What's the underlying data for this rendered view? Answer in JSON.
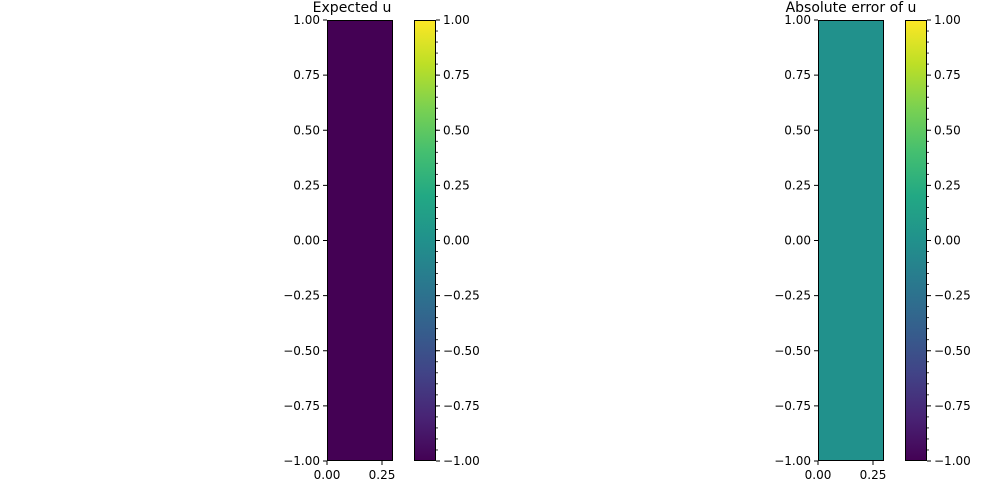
{
  "chart_data": [
    {
      "type": "heatmap",
      "title": "Expected u",
      "xlabel": "",
      "ylabel": "",
      "xlim": [
        0,
        0.3
      ],
      "ylim": [
        -1,
        1
      ],
      "x_ticks": [
        0,
        0.25
      ],
      "x_tick_labels": [
        "0.00",
        "0.25"
      ],
      "y_ticks": [
        -1,
        -0.75,
        -0.5,
        -0.25,
        0,
        0.25,
        0.5,
        0.75,
        1
      ],
      "y_tick_labels": [
        "−1.00",
        "−0.75",
        "−0.50",
        "−0.25",
        "0.00",
        "0.25",
        "0.50",
        "0.75",
        "1.00"
      ],
      "value": -1,
      "fill_color": "#440154",
      "colormap": "viridis",
      "colorbar": {
        "vmin": -1,
        "vmax": 1,
        "ticks": [
          -1,
          -0.75,
          -0.5,
          -0.25,
          0,
          0.25,
          0.5,
          0.75,
          1
        ],
        "tick_labels": [
          "−1.00",
          "−0.75",
          "−0.50",
          "−0.25",
          "0.00",
          "0.25",
          "0.50",
          "0.75",
          "1.00"
        ]
      }
    },
    {
      "type": "heatmap",
      "title": "Absolute error of u",
      "xlabel": "",
      "ylabel": "",
      "xlim": [
        0,
        0.3
      ],
      "ylim": [
        -1,
        1
      ],
      "x_ticks": [
        0,
        0.25
      ],
      "x_tick_labels": [
        "0.00",
        "0.25"
      ],
      "y_ticks": [
        -1,
        -0.75,
        -0.5,
        -0.25,
        0,
        0.25,
        0.5,
        0.75,
        1
      ],
      "y_tick_labels": [
        "−1.00",
        "−0.75",
        "−0.50",
        "−0.25",
        "0.00",
        "0.25",
        "0.50",
        "0.75",
        "1.00"
      ],
      "value": 0,
      "fill_color": "#21918c",
      "colormap": "viridis",
      "colorbar": {
        "vmin": -1,
        "vmax": 1,
        "ticks": [
          -1,
          -0.75,
          -0.5,
          -0.25,
          0,
          0.25,
          0.5,
          0.75,
          1
        ],
        "tick_labels": [
          "−1.00",
          "−0.75",
          "−0.50",
          "−0.25",
          "0.00",
          "0.25",
          "0.50",
          "0.75",
          "1.00"
        ]
      }
    }
  ]
}
